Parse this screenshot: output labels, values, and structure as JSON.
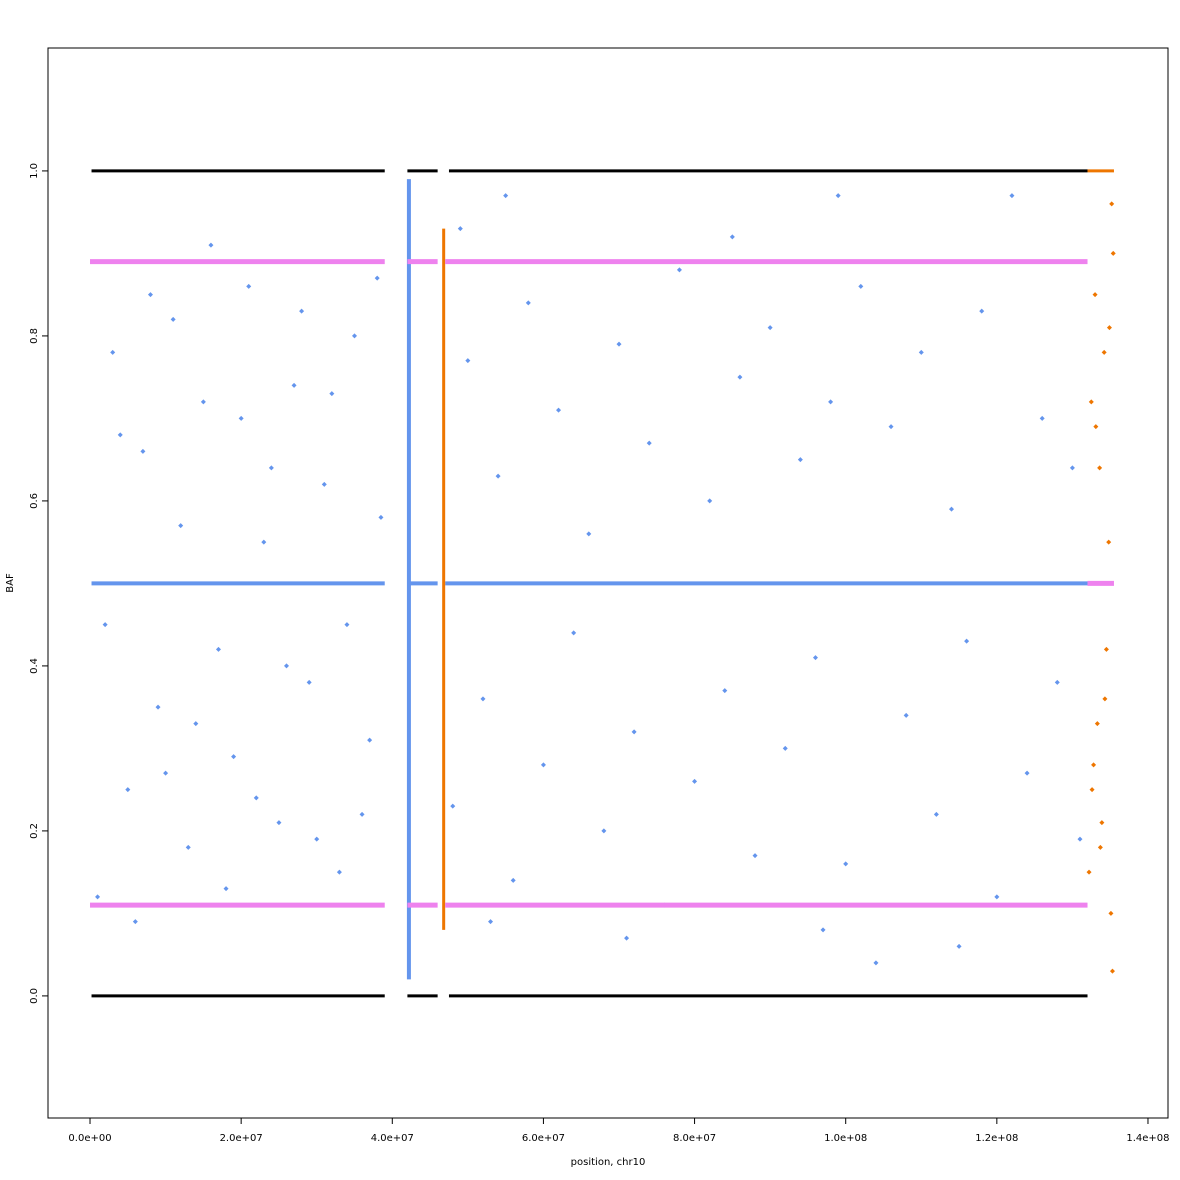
{
  "chart_data": {
    "type": "scatter",
    "x_label": "position, chr10",
    "y_label": "BAF",
    "xlim": [
      -5560000,
      142650000
    ],
    "ylim": [
      -0.148,
      1.149
    ],
    "xticks": [
      {
        "value": 0,
        "label": "0.0e+00"
      },
      {
        "value": 20000000,
        "label": "2.0e+07"
      },
      {
        "value": 40000000,
        "label": "4.0e+07"
      },
      {
        "value": 60000000,
        "label": "6.0e+07"
      },
      {
        "value": 80000000,
        "label": "8.0e+07"
      },
      {
        "value": 100000000,
        "label": "1.0e+08"
      },
      {
        "value": 120000000,
        "label": "1.2e+08"
      },
      {
        "value": 140000000,
        "label": "1.4e+08"
      }
    ],
    "yticks": [
      {
        "value": 0,
        "label": "0.0"
      },
      0.2,
      0.4,
      0.6,
      0.8,
      {
        "value": 1,
        "label": "1.0"
      }
    ],
    "series": [
      {
        "type": "scatter",
        "color": "#6495ed",
        "x": [
          1000000.0,
          3000000.0,
          5000000.0,
          7000000.0,
          9000000.0,
          11000000.0,
          13000000.0,
          15000000.0,
          17000000.0,
          19000000.0,
          21000000.0,
          23000000.0,
          25000000.0,
          27000000.0,
          29000000.0,
          31000000.0,
          33000000.0,
          35000000.0,
          37000000.0,
          38500000.0,
          2000000.0,
          4000000.0,
          6000000.0,
          8000000.0,
          10000000.0,
          12000000.0,
          14000000.0,
          16000000.0,
          18000000.0,
          20000000.0,
          22000000.0,
          24000000.0,
          26000000.0,
          28000000.0,
          30000000.0,
          32000000.0,
          34000000.0,
          36000000.0,
          38000000.0,
          48000000.0,
          50000000.0,
          52000000.0,
          54000000.0,
          56000000.0,
          58000000.0,
          60000000.0,
          62000000.0,
          64000000.0,
          66000000.0,
          68000000.0,
          70000000.0,
          72000000.0,
          74000000.0,
          76000000.0,
          78000000.0,
          80000000.0,
          82000000.0,
          84000000.0,
          86000000.0,
          88000000.0,
          90000000.0,
          92000000.0,
          94000000.0,
          96000000.0,
          98000000.0,
          100000000.0,
          102000000.0,
          104000000.0,
          106000000.0,
          108000000.0,
          110000000.0,
          112000000.0,
          114000000.0,
          116000000.0,
          118000000.0,
          120000000.0,
          122000000.0,
          124000000.0,
          126000000.0,
          128000000.0,
          130000000.0,
          131000000.0,
          49000000.0,
          55000000.0,
          85000000.0,
          99000000.0,
          53000000.0,
          71000000.0,
          97000000.0,
          115000000.0
        ],
        "values": [
          0.12,
          0.78,
          0.25,
          0.66,
          0.35,
          0.82,
          0.18,
          0.72,
          0.42,
          0.29,
          0.86,
          0.55,
          0.21,
          0.74,
          0.38,
          0.62,
          0.15,
          0.8,
          0.31,
          0.58,
          0.45,
          0.68,
          0.09,
          0.85,
          0.27,
          0.57,
          0.33,
          0.91,
          0.13,
          0.7,
          0.24,
          0.64,
          0.4,
          0.83,
          0.19,
          0.73,
          0.45,
          0.22,
          0.87,
          0.23,
          0.77,
          0.36,
          0.63,
          0.14,
          0.84,
          0.28,
          0.71,
          0.44,
          0.56,
          0.2,
          0.79,
          0.32,
          0.67,
          0.11,
          0.88,
          0.26,
          0.6,
          0.37,
          0.75,
          0.17,
          0.81,
          0.3,
          0.65,
          0.41,
          0.72,
          0.16,
          0.86,
          0.04,
          0.69,
          0.34,
          0.78,
          0.22,
          0.59,
          0.43,
          0.83,
          0.12,
          0.97,
          0.27,
          0.7,
          0.38,
          0.64,
          0.19,
          0.93,
          0.97,
          0.92,
          0.97,
          0.09,
          0.07,
          0.08,
          0.06
        ]
      },
      {
        "type": "scatter",
        "color": "#ee7600",
        "x": [
          132200000.0,
          132500000.0,
          132800000.0,
          133000000.0,
          133300000.0,
          133600000.0,
          133900000.0,
          134200000.0,
          134500000.0,
          134800000.0,
          135100000.0,
          135400000.0,
          132600000.0,
          133100000.0,
          133700000.0,
          134300000.0,
          134900000.0,
          135300000.0,
          135200000.0
        ],
        "values": [
          0.15,
          0.72,
          0.28,
          0.85,
          0.33,
          0.64,
          0.21,
          0.78,
          0.42,
          0.55,
          0.1,
          0.9,
          0.25,
          0.69,
          0.18,
          0.36,
          0.81,
          0.03,
          0.96
        ]
      },
      {
        "type": "line",
        "color": "#000000",
        "width": 3,
        "x": [
          200000,
          39000000,
          null,
          42000000,
          46000000,
          null,
          47500000,
          132000000
        ],
        "values": [
          1,
          1,
          null,
          1,
          1,
          null,
          1,
          1
        ]
      },
      {
        "type": "line",
        "color": "#000000",
        "width": 3,
        "x": [
          200000,
          39000000,
          null,
          42000000,
          46000000,
          null,
          47500000,
          132000000
        ],
        "values": [
          0,
          0,
          null,
          0,
          0,
          null,
          0,
          0
        ]
      },
      {
        "type": "line",
        "color": "#ee7600",
        "width": 3,
        "x": [
          132000000,
          135500000
        ],
        "values": [
          1,
          1
        ]
      },
      {
        "type": "line",
        "color": "#6495ed",
        "width": 4,
        "x": [
          200000,
          39000000,
          null,
          42000000,
          46000000,
          null,
          47000000,
          132000000
        ],
        "values": [
          0.5,
          0.5,
          null,
          0.5,
          0.5,
          null,
          0.5,
          0.5
        ]
      },
      {
        "type": "line",
        "color": "#6495ed",
        "width": 4,
        "x": [
          42200000,
          42200000
        ],
        "values": [
          0.02,
          0.99
        ]
      },
      {
        "type": "line",
        "color": "#ee7600",
        "width": 3,
        "x": [
          46800000,
          46800000
        ],
        "values": [
          0.08,
          0.93
        ]
      },
      {
        "type": "line",
        "color": "#ee82ee",
        "width": 5,
        "x": [
          0,
          39000000,
          null,
          42000000,
          46000000,
          null,
          47000000,
          132000000
        ],
        "values": [
          0.89,
          0.89,
          null,
          0.89,
          0.89,
          null,
          0.89,
          0.89
        ]
      },
      {
        "type": "line",
        "color": "#ee82ee",
        "width": 5,
        "x": [
          0,
          39000000,
          null,
          42000000,
          46000000,
          null,
          47000000,
          132000000
        ],
        "values": [
          0.11,
          0.11,
          null,
          0.11,
          0.11,
          null,
          0.11,
          0.11
        ]
      },
      {
        "type": "line",
        "color": "#ee82ee",
        "width": 5,
        "x": [
          132000000,
          135500000
        ],
        "values": [
          0.5,
          0.5
        ]
      }
    ]
  }
}
